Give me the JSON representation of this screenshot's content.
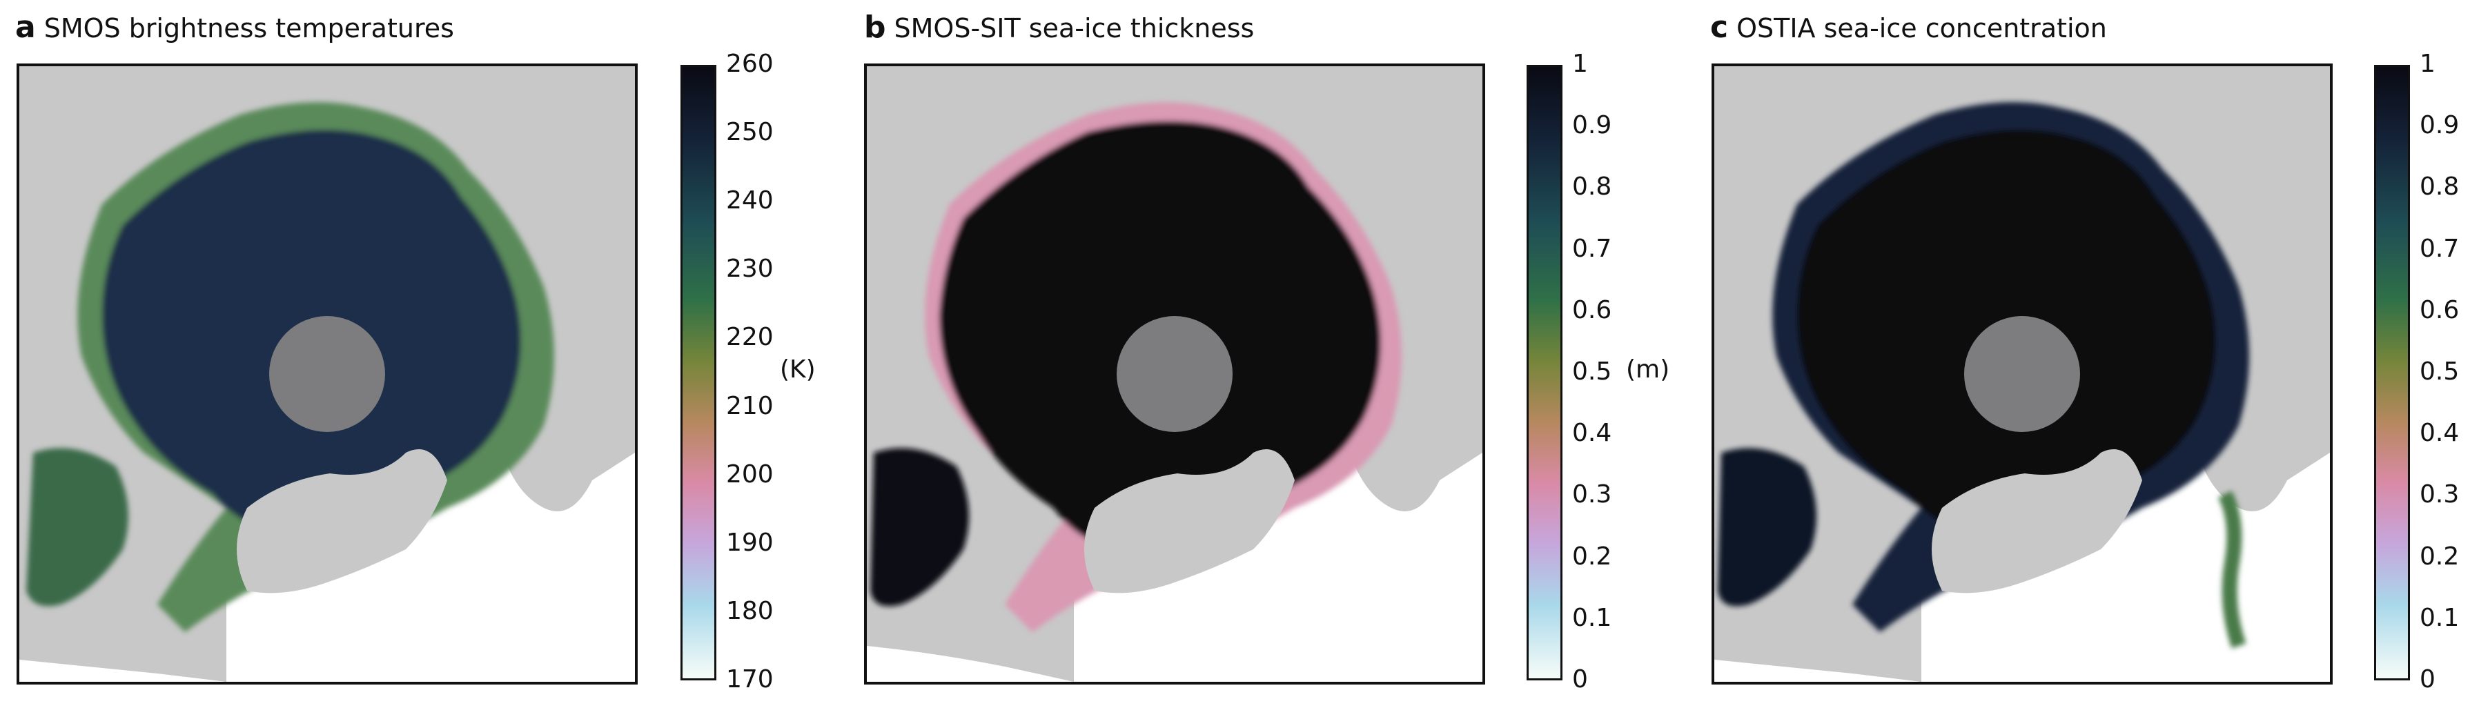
{
  "panels": [
    {
      "letter": "a",
      "title": "SMOS brightness temperatures",
      "colorbar": {
        "ticks": [
          "260",
          "250",
          "240",
          "230",
          "220",
          "210",
          "200",
          "190",
          "180",
          "170"
        ],
        "unit": "(K)"
      }
    },
    {
      "letter": "b",
      "title": "SMOS-SIT sea-ice thickness",
      "colorbar": {
        "ticks": [
          "1",
          "0.9",
          "0.8",
          "0.7",
          "0.6",
          "0.5",
          "0.4",
          "0.3",
          "0.2",
          "0.1",
          "0"
        ],
        "unit": "(m)"
      }
    },
    {
      "letter": "c",
      "title": "OSTIA sea-ice concentration",
      "colorbar": {
        "ticks": [
          "1",
          "0.9",
          "0.8",
          "0.7",
          "0.6",
          "0.5",
          "0.4",
          "0.3",
          "0.2",
          "0.1",
          "0"
        ],
        "unit": ""
      }
    }
  ],
  "colors": {
    "land": "#c8c8c8",
    "ocean": "#ffffff",
    "pole_hole": "#7d7d7f",
    "colormap_stops": [
      "#0a0a14",
      "#16304a",
      "#2b6a55",
      "#5a7e3a",
      "#a58a5a",
      "#d98aa2",
      "#c8a3d8",
      "#a6d6ea",
      "#f4fbf6"
    ]
  }
}
